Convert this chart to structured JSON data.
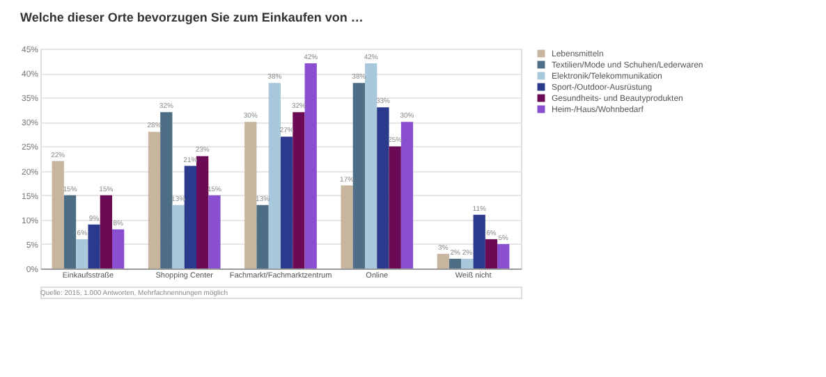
{
  "chart_data": {
    "type": "bar",
    "title": "Welche dieser Orte bevorzugen Sie zum Einkaufen von …",
    "categories": [
      "Einkaufsstraße",
      "Shopping Center",
      "Fachmarkt/Fachmarktzentrum",
      "Online",
      "Weiß nicht"
    ],
    "series": [
      {
        "name": "Lebensmitteln",
        "color": "#c8b5a0",
        "values": [
          22,
          28,
          30,
          17,
          3
        ],
        "value_labels": [
          "22%",
          "28%",
          "30%",
          "17%",
          "3%"
        ]
      },
      {
        "name": "Textilien/Mode und Schuhen/Lederwaren",
        "color": "#4e6e85",
        "values": [
          15,
          32,
          13,
          38,
          2
        ],
        "value_labels": [
          "15%",
          "32%",
          "13%",
          "38%",
          "2%"
        ]
      },
      {
        "name": "Elektronik/Telekommunikation",
        "color": "#a9c8dc",
        "values": [
          6,
          13,
          38,
          42,
          2
        ],
        "value_labels": [
          "6%",
          "13%",
          "38%",
          "42%",
          "2%"
        ]
      },
      {
        "name": "Sport-/Outdoor-Ausrüstung",
        "color": "#2b3a8c",
        "values": [
          9,
          21,
          27,
          33,
          11
        ],
        "value_labels": [
          "9%",
          "21%",
          "27%",
          "33%",
          "11%"
        ]
      },
      {
        "name": "Gesundheits- und Beautyprodukten",
        "color": "#6b0a55",
        "values": [
          15,
          23,
          32,
          25,
          6
        ],
        "value_labels": [
          "15%",
          "23%",
          "32%",
          "25%",
          "6%"
        ]
      },
      {
        "name": "Heim-/Haus/Wohnbedarf",
        "color": "#8a4fcf",
        "values": [
          8,
          15,
          42,
          30,
          5
        ],
        "value_labels": [
          "8%",
          "15%",
          "42%",
          "30%",
          "5%"
        ]
      }
    ],
    "ylim": [
      0,
      45
    ],
    "yticks": [
      {
        "value": 0,
        "label": "0%"
      },
      {
        "value": 5,
        "label": "5%"
      },
      {
        "value": 10,
        "label": "10%"
      },
      {
        "value": 15,
        "label": "15%"
      },
      {
        "value": 20,
        "label": "20%"
      },
      {
        "value": 25,
        "label": "25%"
      },
      {
        "value": 30,
        "label": "30%"
      },
      {
        "value": 35,
        "label": "35%"
      },
      {
        "value": 40,
        "label": "40%"
      },
      {
        "value": 45,
        "label": "45%"
      }
    ],
    "grid": "y",
    "legend": "top right",
    "annotations": [
      "Quelle: 2015, 1.000 Antworten, Mehrfachnennungen möglich"
    ]
  }
}
